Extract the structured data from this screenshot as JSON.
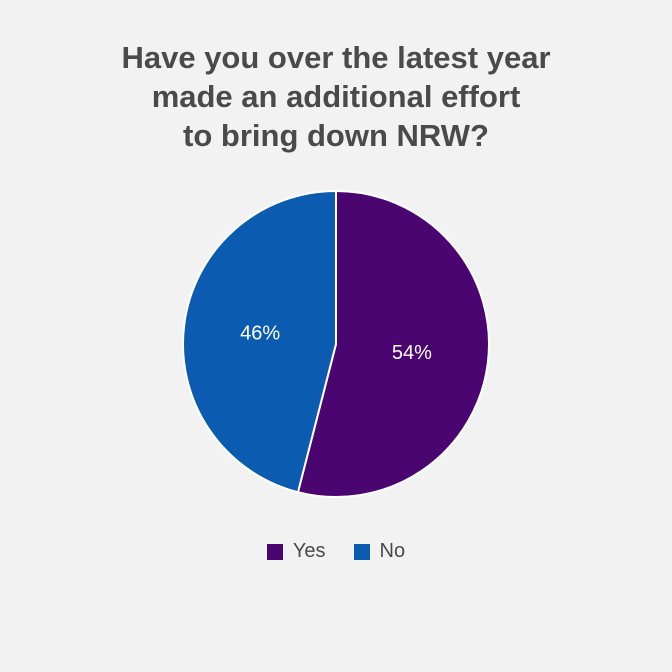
{
  "chart_data": {
    "type": "pie",
    "title": [
      "Have you over the latest year",
      "made an additional effort",
      "to bring down NRW?"
    ],
    "slices": [
      {
        "label": "Yes",
        "value": 54,
        "value_label": "54%",
        "color": "#4b0570"
      },
      {
        "label": "No",
        "value": 46,
        "value_label": "46%",
        "color": "#0b5cb0"
      }
    ],
    "legend_position": "bottom"
  }
}
